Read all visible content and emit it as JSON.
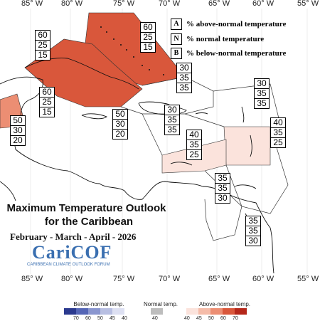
{
  "map": {
    "top_lon_labels": [
      "85° W",
      "80° W",
      "75° W",
      "70° W",
      "65° W",
      "60° W",
      "55° W"
    ],
    "bottom_lon_labels": [
      "85° W",
      "80° W",
      "75° W",
      "70° W",
      "65° W",
      "60° W",
      "55° W"
    ]
  },
  "legend": {
    "above": {
      "key": "A",
      "text": "% above-normal temperature"
    },
    "normal": {
      "key": "N",
      "text": "% normal temperature"
    },
    "below": {
      "key": "B",
      "text": "% below-normal temperature"
    }
  },
  "title": {
    "line1": "Maximum Temperature Outlook",
    "line2": "for the Caribbean",
    "period": "February - March - April - 2026"
  },
  "logo": {
    "name": "CariCOF",
    "tagline": "CARIBBEAN CLIMATE OUTLOOK FORUM"
  },
  "probability_boxes": [
    {
      "id": "bahamas",
      "a": "60",
      "n": "25",
      "b": "15"
    },
    {
      "id": "cuba-west",
      "a": "60",
      "n": "25",
      "b": "15"
    },
    {
      "id": "cayman",
      "a": "60",
      "n": "25",
      "b": "15"
    },
    {
      "id": "belize",
      "a": "50",
      "n": "30",
      "b": "20"
    },
    {
      "id": "jamaica",
      "a": "50",
      "n": "30",
      "b": "20"
    },
    {
      "id": "turks",
      "a": "30",
      "n": "35",
      "b": "35"
    },
    {
      "id": "hispaniola",
      "a": "30",
      "n": "35",
      "b": "35"
    },
    {
      "id": "atlantic-n",
      "a": "30",
      "n": "35",
      "b": "35"
    },
    {
      "id": "leewards",
      "a": "40",
      "n": "35",
      "b": "25"
    },
    {
      "id": "puerto-rico",
      "a": "40",
      "n": "35",
      "b": "25"
    },
    {
      "id": "abc",
      "a": "35",
      "n": "35",
      "b": "30"
    },
    {
      "id": "guyana",
      "a": "35",
      "n": "35",
      "b": "30"
    }
  ],
  "colorbar": {
    "below_label": "Below-normal temp.",
    "normal_label": "Normal temp.",
    "above_label": "Above-normal temp.",
    "below_ticks": [
      "70",
      "60",
      "50",
      "45",
      "40"
    ],
    "normal_tick": "40",
    "above_ticks": [
      "40",
      "45",
      "50",
      "60",
      "70"
    ],
    "below_colors": [
      "#2b3a8f",
      "#5566b6",
      "#8a96cf",
      "#b8bfe2",
      "#dde0f2"
    ],
    "normal_color": "#bdbdbd",
    "above_colors": [
      "#fbe3dc",
      "#f5bca9",
      "#ec8e73",
      "#d9573b",
      "#b5271a"
    ]
  }
}
